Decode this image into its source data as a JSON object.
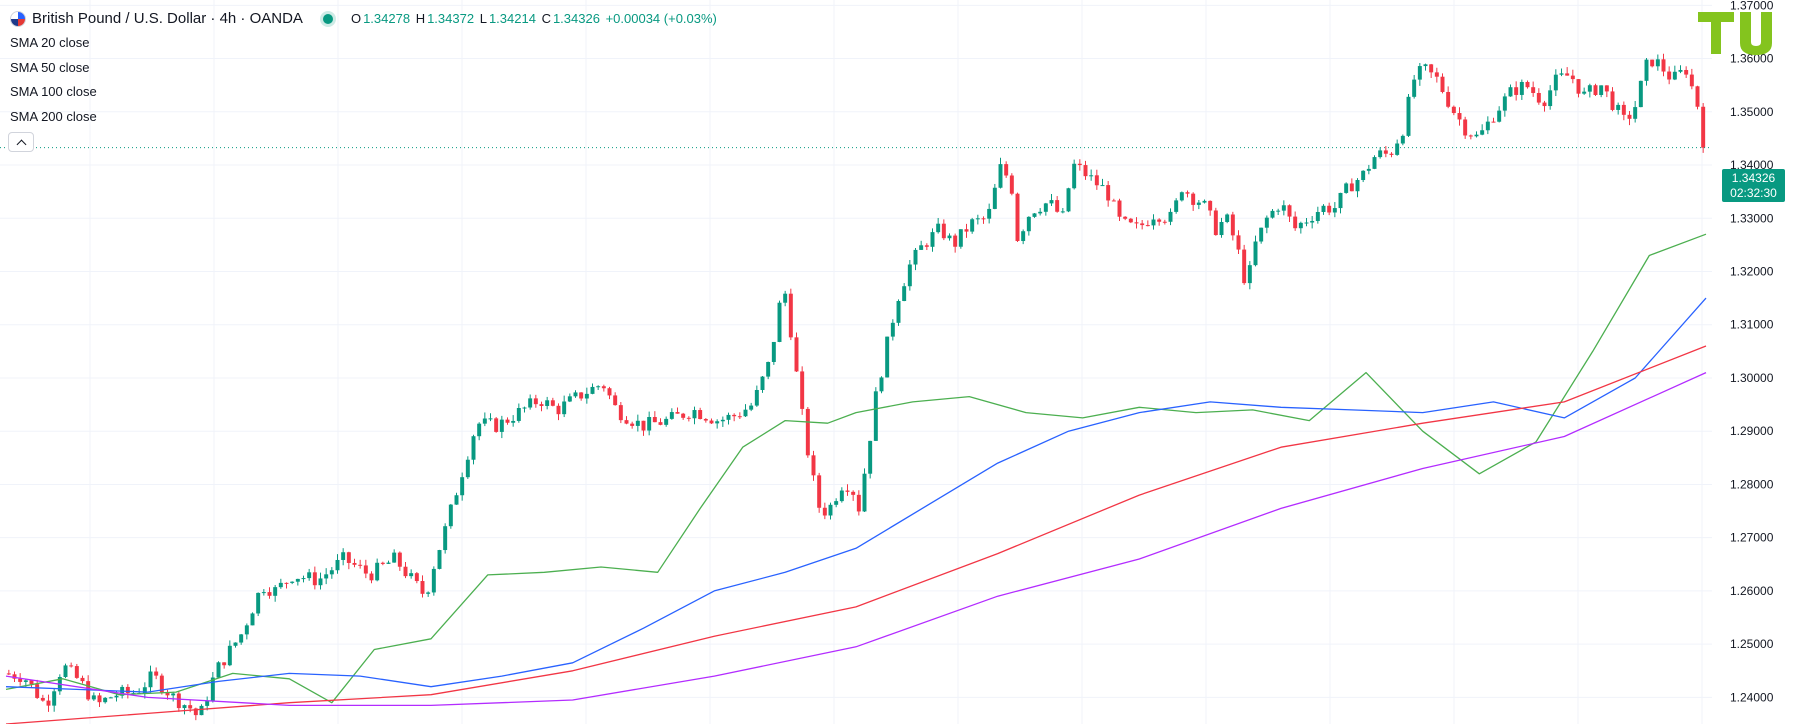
{
  "legend": {
    "title": "British Pound / U.S. Dollar · 4h · OANDA",
    "ohlc": {
      "o_label": "O",
      "o_value": "1.34278",
      "h_label": "H",
      "h_value": "1.34372",
      "l_label": "L",
      "l_value": "1.34214",
      "c_label": "C",
      "c_value": "1.34326",
      "change": "+0.00034 (+0.03%)"
    },
    "indicators": [
      "SMA 20 close",
      "SMA 50 close",
      "SMA 100 close",
      "SMA 200 close"
    ]
  },
  "price_tag": {
    "price": "1.34326",
    "countdown": "02:32:30"
  },
  "colors": {
    "up": "#089981",
    "down": "#f23645",
    "sma20": "#4caf50",
    "sma50": "#2962ff",
    "sma100": "#f23645",
    "sma200": "#b32cff",
    "grid": "#f0f3fa",
    "axis_text": "#131722",
    "logo": "#84c41e"
  },
  "chart_data": {
    "type": "line",
    "ylim": [
      1.235,
      1.371
    ],
    "yticks": [
      "1.24000",
      "1.25000",
      "1.26000",
      "1.27000",
      "1.28000",
      "1.29000",
      "1.30000",
      "1.31000",
      "1.32000",
      "1.33000",
      "1.34000",
      "1.35000",
      "1.36000",
      "1.37000"
    ],
    "grid": true,
    "last_price": 1.34326,
    "series": [
      {
        "name": "SMA 20 close",
        "x": [
          0,
          20,
          40,
          60,
          80,
          100,
          115,
          130,
          150,
          170,
          190,
          210,
          230,
          245,
          260,
          275,
          290,
          300,
          320,
          340,
          360,
          380,
          400,
          420,
          440,
          460,
          480,
          500,
          520,
          540,
          560,
          580,
          600
        ],
        "values": [
          1.2415,
          1.2435,
          1.2405,
          1.241,
          1.2445,
          1.2435,
          1.239,
          1.249,
          1.251,
          1.263,
          1.2635,
          1.2645,
          1.2635,
          1.2755,
          1.287,
          1.292,
          1.2915,
          1.2935,
          1.2955,
          1.2965,
          1.2935,
          1.2925,
          1.2945,
          1.2935,
          1.294,
          1.292,
          1.301,
          1.29,
          1.282,
          1.288,
          1.305,
          1.323,
          1.327
        ]
      },
      {
        "name": "SMA 50 close",
        "x": [
          0,
          25,
          50,
          75,
          100,
          125,
          150,
          175,
          200,
          225,
          250,
          275,
          300,
          325,
          350,
          375,
          400,
          425,
          450,
          475,
          500,
          525,
          550,
          575,
          600
        ],
        "values": [
          1.242,
          1.2415,
          1.241,
          1.243,
          1.2445,
          1.244,
          1.242,
          1.244,
          1.2465,
          1.253,
          1.26,
          1.2635,
          1.268,
          1.276,
          1.284,
          1.29,
          1.2935,
          1.2955,
          1.2945,
          1.294,
          1.2935,
          1.2955,
          1.2925,
          1.3,
          1.315
        ]
      },
      {
        "name": "SMA 100 close",
        "x": [
          0,
          50,
          100,
          150,
          200,
          250,
          300,
          350,
          400,
          450,
          500,
          550,
          600
        ],
        "values": [
          1.235,
          1.237,
          1.239,
          1.2405,
          1.245,
          1.2515,
          1.257,
          1.267,
          1.278,
          1.287,
          1.2915,
          1.2955,
          1.306
        ]
      },
      {
        "name": "SMA 200 close",
        "x": [
          0,
          50,
          100,
          150,
          200,
          250,
          300,
          350,
          400,
          450,
          500,
          550,
          600
        ],
        "values": [
          1.244,
          1.24,
          1.2385,
          1.2385,
          1.2395,
          1.244,
          1.2495,
          1.259,
          1.266,
          1.2755,
          1.283,
          1.289,
          1.301
        ]
      }
    ]
  }
}
